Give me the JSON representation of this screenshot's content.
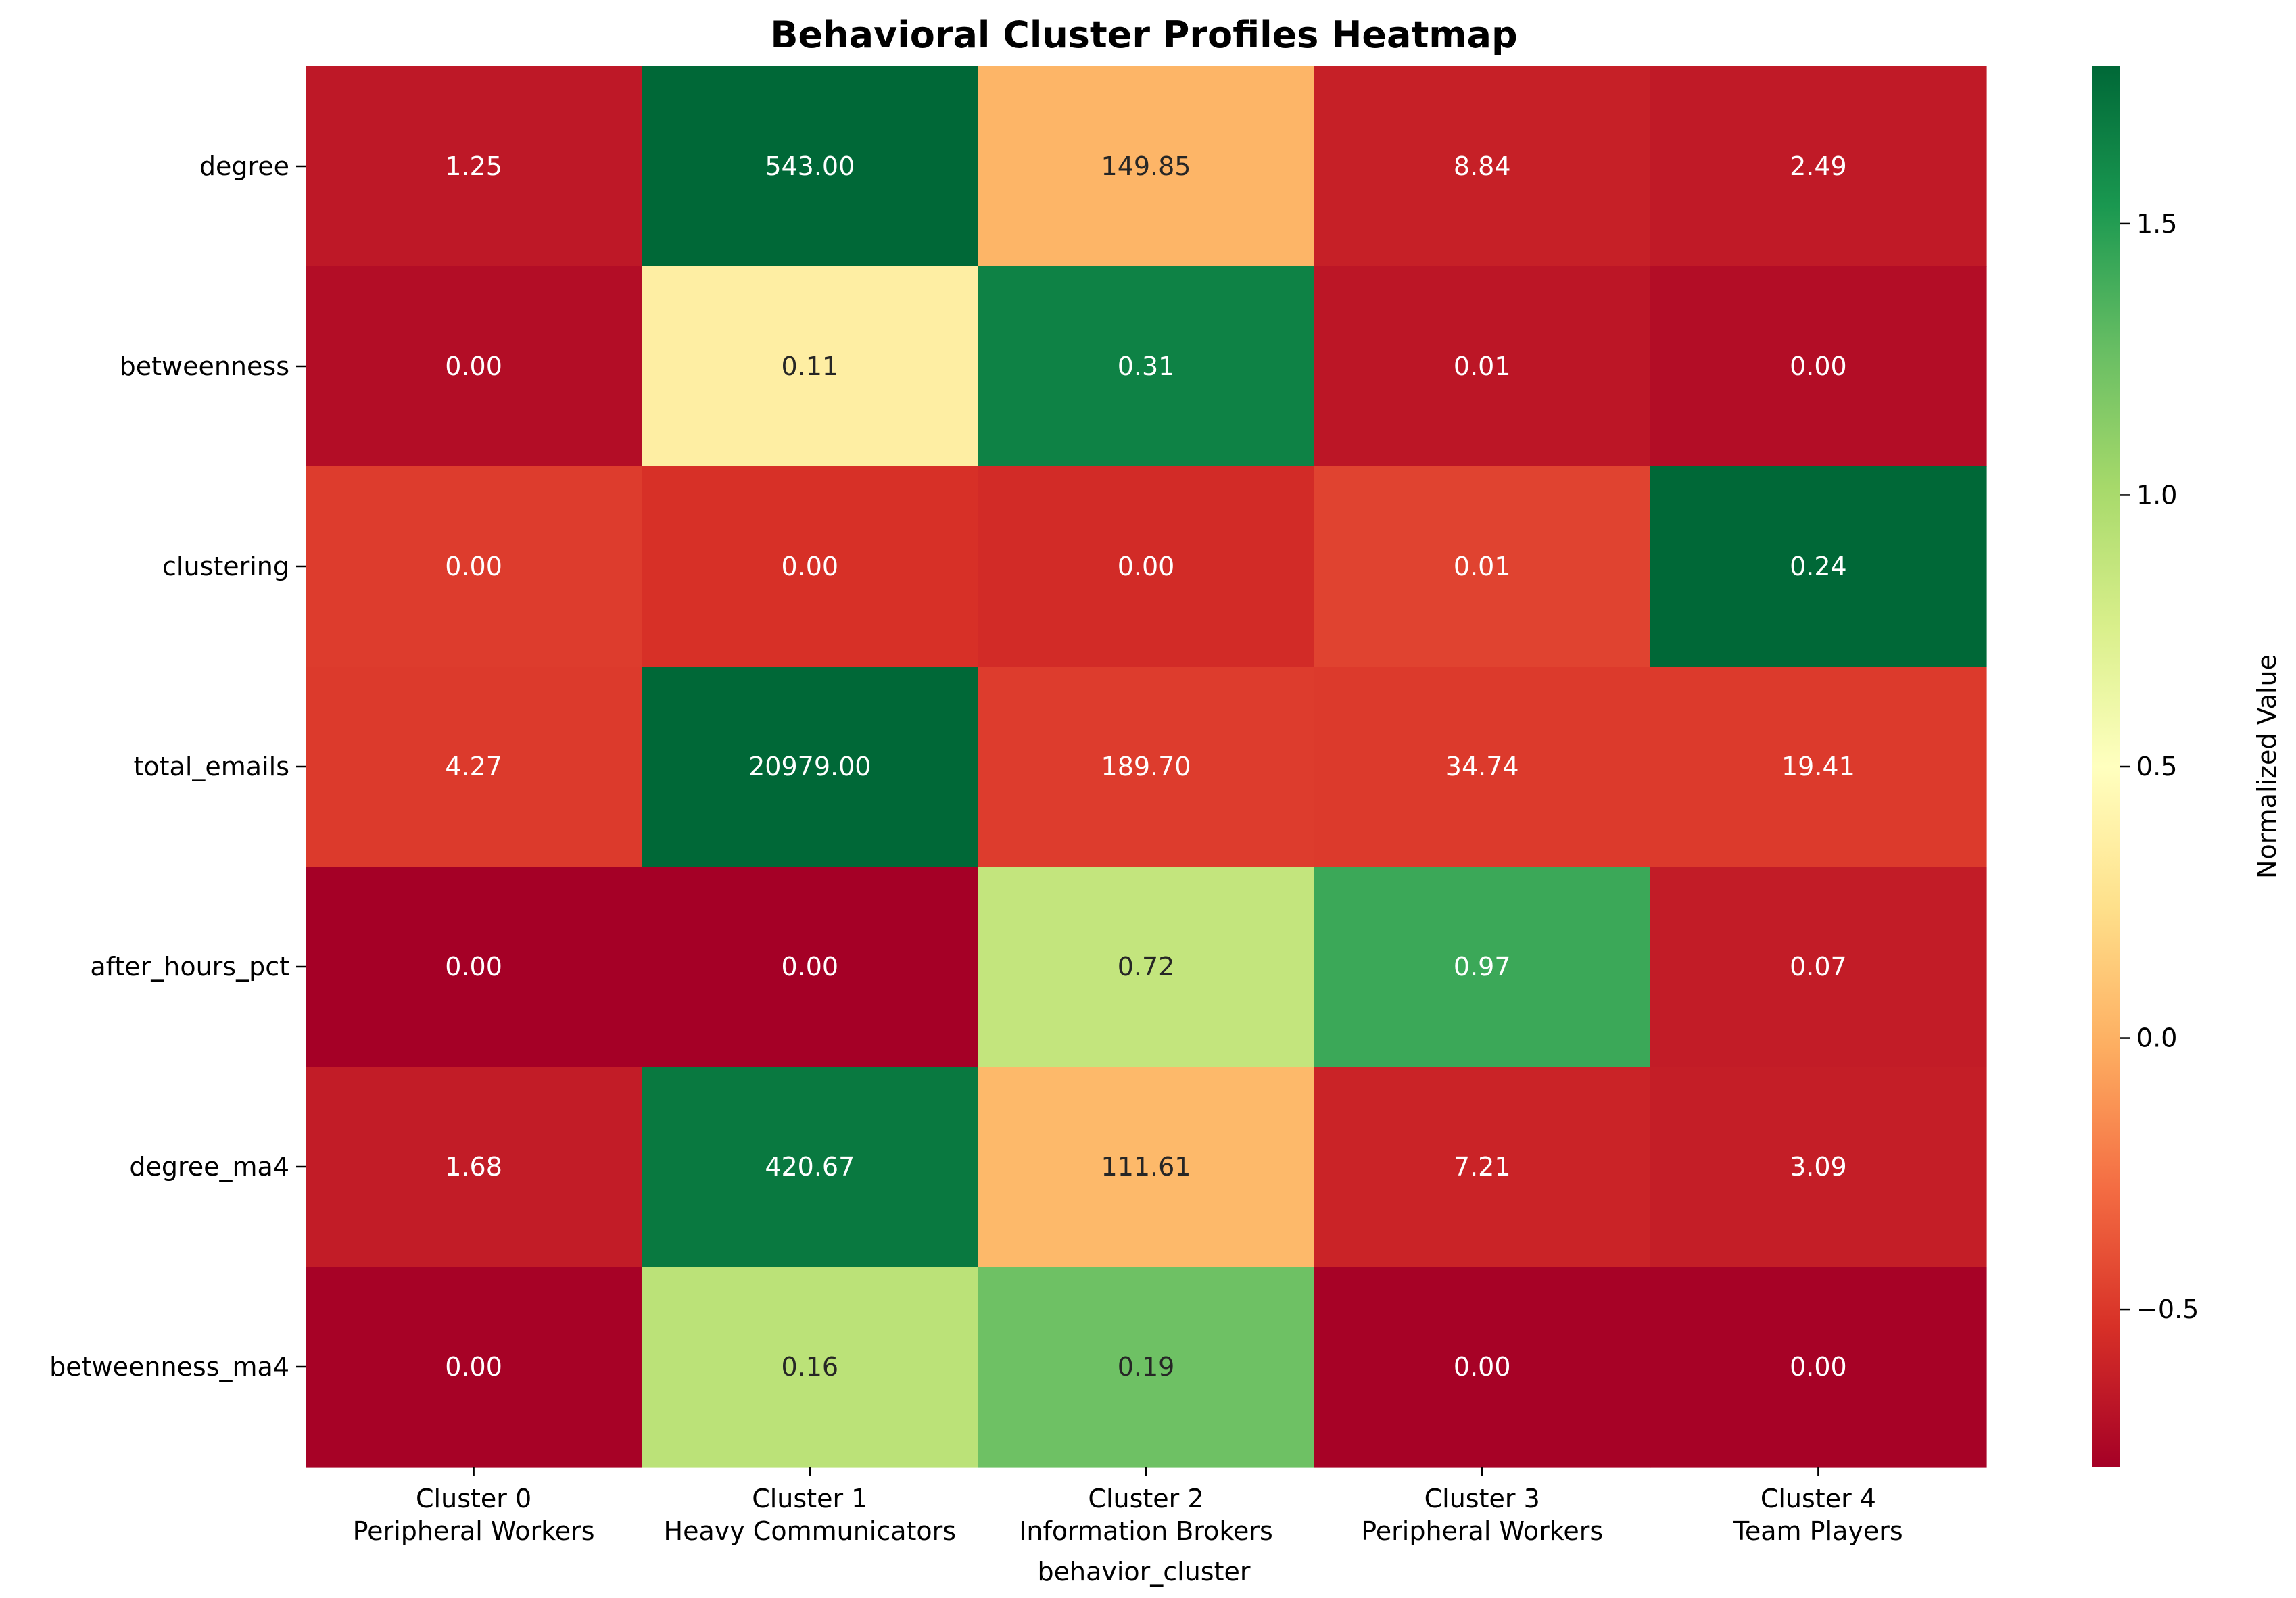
{
  "chart_data": {
    "type": "heatmap",
    "title": "Behavioral Cluster Profiles Heatmap",
    "xlabel": "behavior_cluster",
    "ylabel": "",
    "columns": [
      {
        "line1": "Cluster 0",
        "line2": "Peripheral Workers"
      },
      {
        "line1": "Cluster 1",
        "line2": "Heavy Communicators"
      },
      {
        "line1": "Cluster 2",
        "line2": "Information Brokers"
      },
      {
        "line1": "Cluster 3",
        "line2": "Peripheral Workers"
      },
      {
        "line1": "Cluster 4",
        "line2": "Team Players"
      }
    ],
    "rows": [
      "degree",
      "betweenness",
      "clustering",
      "total_emails",
      "after_hours_pct",
      "degree_ma4",
      "betweenness_ma4"
    ],
    "cell_labels": [
      [
        "1.25",
        "543.00",
        "149.85",
        "8.84",
        "2.49"
      ],
      [
        "0.00",
        "0.11",
        "0.31",
        "0.01",
        "0.00"
      ],
      [
        "0.00",
        "0.00",
        "0.00",
        "0.01",
        "0.24"
      ],
      [
        "4.27",
        "20979.00",
        "189.70",
        "34.74",
        "19.41"
      ],
      [
        "0.00",
        "0.00",
        "0.72",
        "0.97",
        "0.07"
      ],
      [
        "1.68",
        "420.67",
        "111.61",
        "7.21",
        "3.09"
      ],
      [
        "0.00",
        "0.16",
        "0.19",
        "0.00",
        "0.00"
      ]
    ],
    "normalized_values": [
      [
        -0.66,
        1.79,
        0.02,
        -0.62,
        -0.65
      ],
      [
        -0.72,
        0.36,
        1.65,
        -0.67,
        -0.72
      ],
      [
        -0.48,
        -0.53,
        -0.56,
        -0.45,
        1.79
      ],
      [
        -0.49,
        1.79,
        -0.48,
        -0.49,
        -0.49
      ],
      [
        -0.79,
        -0.79,
        0.87,
        1.42,
        -0.64
      ],
      [
        -0.64,
        1.7,
        0.04,
        -0.6,
        -0.63
      ],
      [
        -0.78,
        0.91,
        1.24,
        -0.78,
        -0.78
      ]
    ],
    "colormap": "RdYlGn",
    "colorbar": {
      "label": "Normalized Value",
      "min": -0.79,
      "max": 1.79,
      "ticks": [
        1.5,
        1.0,
        0.5,
        0.0,
        -0.5
      ],
      "tick_labels": [
        "1.5",
        "1.0",
        "0.5",
        "0.0",
        "−0.5"
      ]
    },
    "grid": false,
    "legend": "colorbar-right"
  }
}
